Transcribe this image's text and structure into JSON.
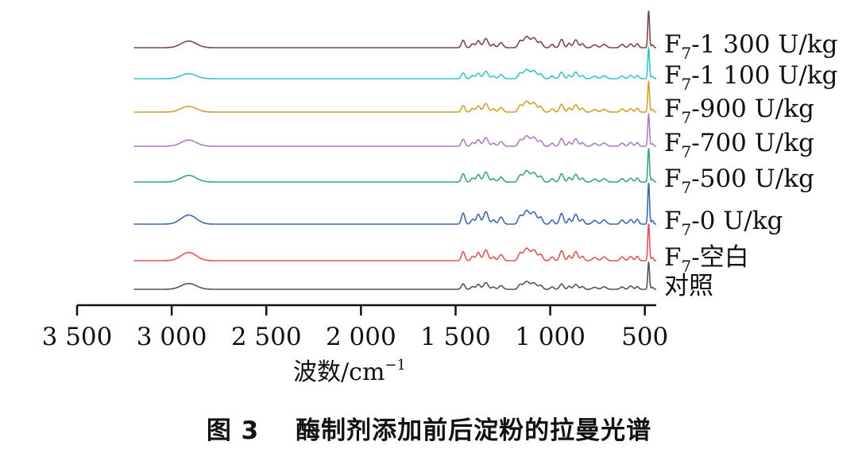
{
  "caption": {
    "figure_number": "图 3",
    "title": "酶制剂添加前后淀粉的拉曼光谱"
  },
  "chart_data": {
    "type": "line",
    "title": "",
    "xlabel": "波数/cm",
    "xlabel_superscript": "−1",
    "ylabel": "",
    "x_reversed": true,
    "xlim": [
      3500,
      440
    ],
    "data_x_range": [
      3200,
      440
    ],
    "xticks": [
      3500,
      3000,
      2500,
      2000,
      1500,
      1000,
      500
    ],
    "xtick_labels": [
      "3 500",
      "3 000",
      "2 500",
      "2 000",
      "1 500",
      "1 000",
      "500"
    ],
    "yaxis_visible": false,
    "grid": false,
    "legend": "labels-right-of-traces",
    "peak_positions": [
      2910,
      1460,
      1380,
      1340,
      1260,
      1125,
      1085,
      940,
      865,
      765,
      715,
      575,
      480
    ],
    "series": [
      {
        "name": "对照",
        "label_main": "对照",
        "label_sub": "",
        "label_rest": "",
        "color": "#555555",
        "relative_intensity": [
          0.14,
          0.13,
          0.12,
          0.16,
          0.09,
          0.19,
          0.15,
          0.13,
          0.12,
          0.05,
          0.06,
          0.08,
          0.65
        ]
      },
      {
        "name": "F7-空白",
        "label_main": "F",
        "label_sub": "7",
        "label_rest": "-空白",
        "color": "#e05555",
        "relative_intensity": [
          0.2,
          0.22,
          0.2,
          0.26,
          0.15,
          0.3,
          0.25,
          0.24,
          0.22,
          0.08,
          0.09,
          0.1,
          0.9
        ]
      },
      {
        "name": "F7-0 U/kg",
        "label_main": "F",
        "label_sub": "7",
        "label_rest": "-0 U/kg",
        "color": "#3f68b0",
        "relative_intensity": [
          0.22,
          0.27,
          0.24,
          0.3,
          0.17,
          0.33,
          0.28,
          0.26,
          0.24,
          0.09,
          0.1,
          0.11,
          1.0
        ]
      },
      {
        "name": "F7-500 U/kg",
        "label_main": "F",
        "label_sub": "7",
        "label_rest": "-500 U/kg",
        "color": "#3aa870",
        "relative_intensity": [
          0.16,
          0.2,
          0.18,
          0.24,
          0.12,
          0.27,
          0.22,
          0.2,
          0.19,
          0.07,
          0.08,
          0.09,
          0.82
        ]
      },
      {
        "name": "F7-700 U/kg",
        "label_main": "F",
        "label_sub": "7",
        "label_rest": "-700 U/kg",
        "color": "#b07cc6",
        "relative_intensity": [
          0.15,
          0.17,
          0.16,
          0.21,
          0.11,
          0.25,
          0.21,
          0.19,
          0.18,
          0.07,
          0.08,
          0.09,
          0.78
        ]
      },
      {
        "name": "F7-900 U/kg",
        "label_main": "F",
        "label_sub": "7",
        "label_rest": "-900 U/kg",
        "color": "#d4a12c",
        "relative_intensity": [
          0.14,
          0.16,
          0.15,
          0.21,
          0.11,
          0.26,
          0.22,
          0.19,
          0.18,
          0.06,
          0.07,
          0.08,
          0.74
        ]
      },
      {
        "name": "F7-1 100 U/kg",
        "label_main": "F",
        "label_sub": "7",
        "label_rest": "-1 100 U/kg",
        "color": "#39c4c6",
        "relative_intensity": [
          0.12,
          0.14,
          0.13,
          0.18,
          0.1,
          0.22,
          0.19,
          0.16,
          0.16,
          0.06,
          0.07,
          0.08,
          0.74
        ]
      },
      {
        "name": "F7-1 300 U/kg",
        "label_main": "F",
        "label_sub": "7",
        "label_rest": "-1 300 U/kg",
        "color": "#7a4a4a",
        "relative_intensity": [
          0.16,
          0.18,
          0.17,
          0.22,
          0.12,
          0.27,
          0.23,
          0.2,
          0.19,
          0.07,
          0.08,
          0.09,
          0.9
        ]
      }
    ]
  }
}
